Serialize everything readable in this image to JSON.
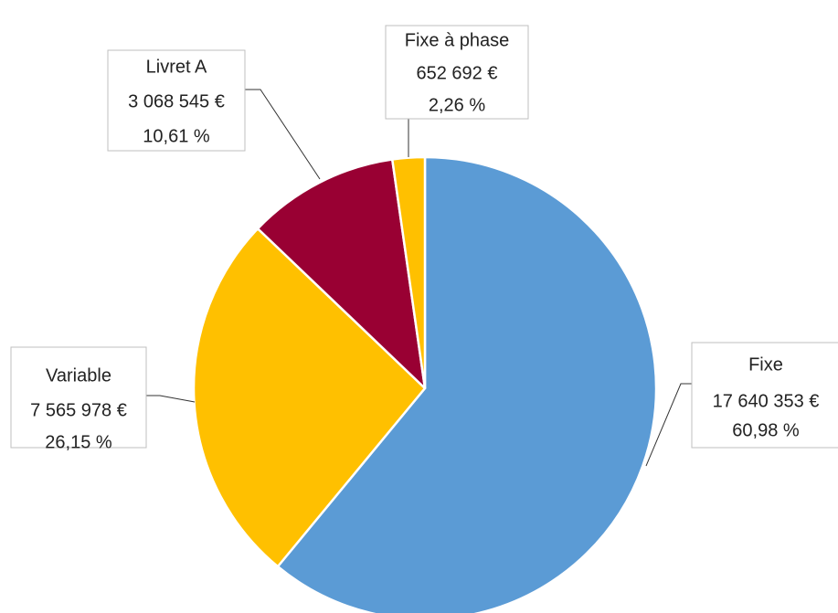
{
  "chart_data": {
    "type": "pie",
    "categories": [
      "Fixe",
      "Variable",
      "Livret A",
      "Fixe à phase"
    ],
    "values": [
      17640353,
      7565978,
      3068545,
      652692
    ],
    "value_labels": [
      "17 640 353 €",
      "7 565 978 €",
      "3 068 545 €",
      "652 692 €"
    ],
    "percentages": [
      60.98,
      26.15,
      10.61,
      2.26
    ],
    "percentage_labels": [
      "60,98 %",
      "26,15 %",
      "10,61 %",
      "2,26 %"
    ],
    "colors": [
      "#5b9bd5",
      "#ffc000",
      "#990033",
      "#ffc000"
    ]
  }
}
